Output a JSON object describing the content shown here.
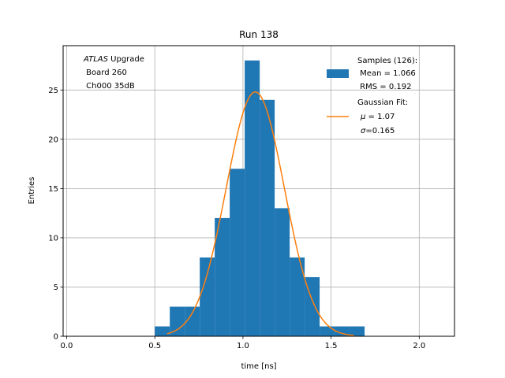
{
  "chart_data": {
    "type": "bar",
    "title": "Run 138",
    "xlabel": "time [ns]",
    "ylabel": "Entries",
    "xlim": [
      -0.02,
      2.2
    ],
    "ylim": [
      0,
      29.5
    ],
    "grid": true,
    "xticks": [
      0.0,
      0.5,
      1.0,
      1.5,
      2.0
    ],
    "xtick_labels": [
      "0.0",
      "0.5",
      "1.0",
      "1.5",
      "2.0"
    ],
    "yticks": [
      0,
      5,
      10,
      15,
      20,
      25
    ],
    "ytick_labels": [
      "0",
      "5",
      "10",
      "15",
      "20",
      "25"
    ],
    "annotation": {
      "italic": "ATLAS",
      "line1_rest": " Upgrade",
      "line2": " Board 260",
      "line3": " Ch000 35dB"
    },
    "histogram": {
      "bin_edges": [
        0.5,
        0.585,
        0.67,
        0.755,
        0.84,
        0.925,
        1.01,
        1.095,
        1.18,
        1.265,
        1.35,
        1.435,
        1.52,
        1.605,
        1.69
      ],
      "counts": [
        1,
        3,
        3,
        8,
        12,
        17,
        28,
        24,
        13,
        8,
        6,
        1,
        1,
        1
      ],
      "color": "#1f77b4"
    },
    "gaussian_fit": {
      "mu": 1.07,
      "sigma": 0.165,
      "amplitude": 24.8,
      "x_range": [
        0.57,
        1.63
      ],
      "color": "#ff7f0e"
    },
    "legend": {
      "placement": "top-right",
      "samples": {
        "line1": "Samples (126):",
        "line2": " Mean = 1.066",
        "line3": " RMS = 0.192"
      },
      "fit": {
        "line1": "Gaussian Fit:",
        "line2_sym": "μ",
        "line2_rest": " = 1.07",
        "line3_sym": "σ",
        "line3_rest": "=0.165"
      }
    }
  }
}
